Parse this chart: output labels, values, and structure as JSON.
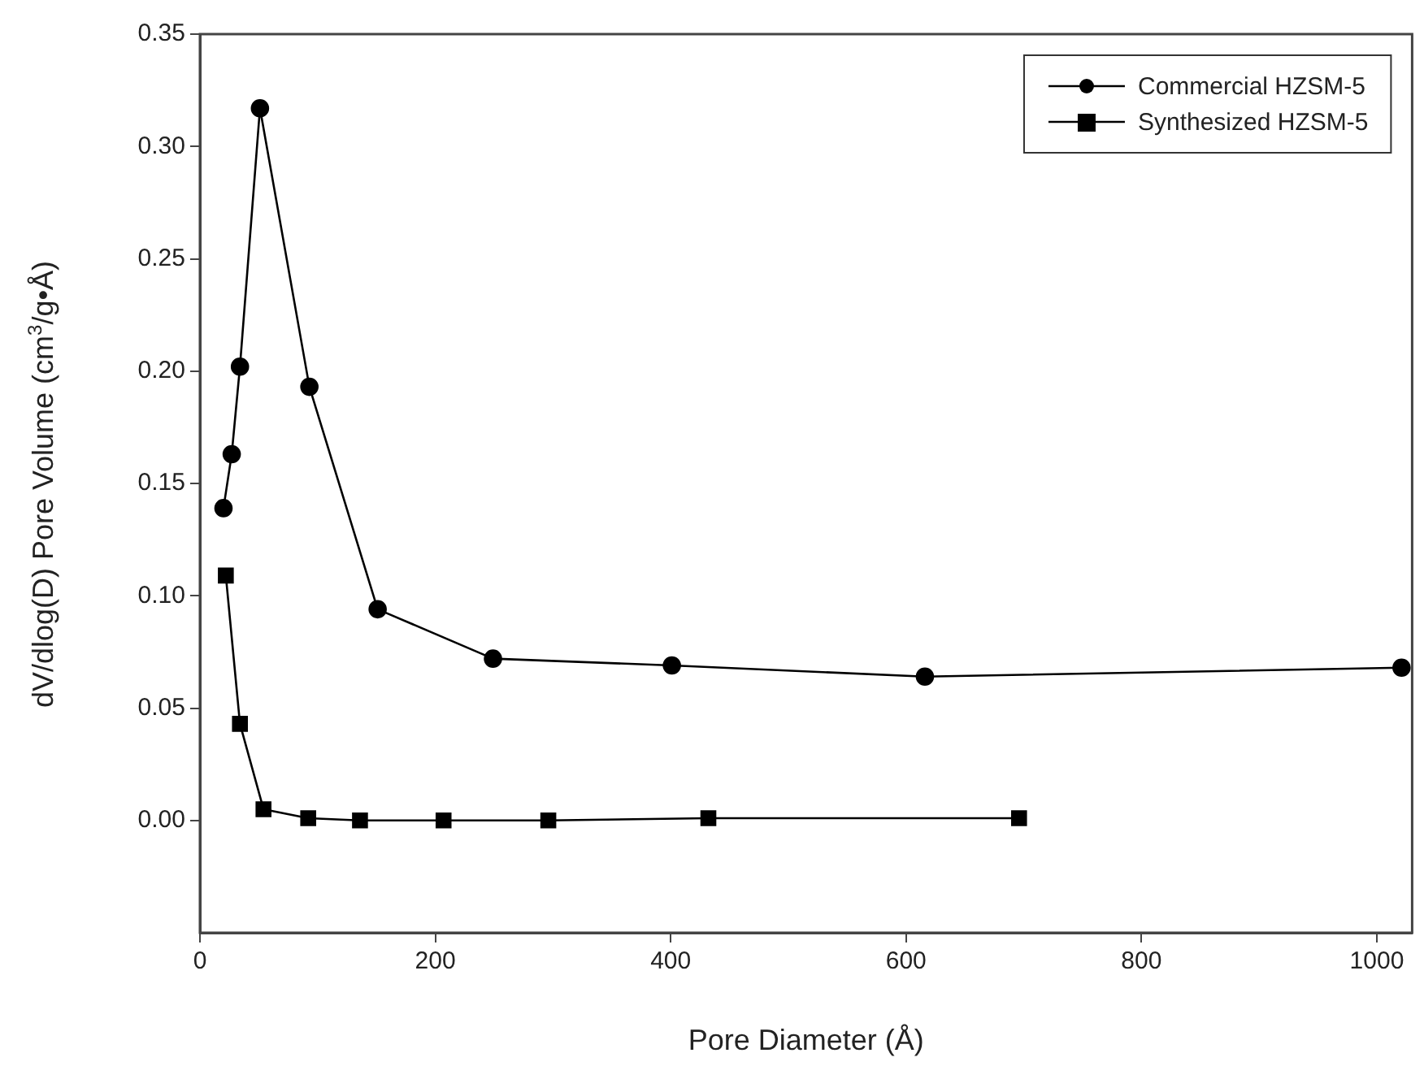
{
  "chart_data": {
    "type": "line",
    "xlabel": "Pore Diameter (Å)",
    "ylabel": "dV/dlog(D) Pore Volume (cm$^{3}$/g•Å)",
    "xlim": [
      0,
      1030
    ],
    "xticks": [
      0,
      200,
      400,
      600,
      800,
      1000
    ],
    "ylim": [
      -0.05,
      0.35
    ],
    "yticks": [
      {
        "value": 0,
        "label": "0.00"
      },
      {
        "value": 0.05,
        "label": "0.05"
      },
      {
        "value": 0.1,
        "label": "0.10"
      },
      {
        "value": 0.15,
        "label": "0.15"
      },
      {
        "value": 0.2,
        "label": "0.20"
      },
      {
        "value": 0.25,
        "label": "0.25"
      },
      {
        "value": 0.3,
        "label": "0.30"
      },
      {
        "value": 0.35,
        "label": "0.35"
      }
    ],
    "grid": false,
    "legend": "top right",
    "line_style": "solid",
    "series": [
      {
        "name": "Commercial HZSM-5",
        "color": "#000000",
        "marker": "circle",
        "x": [
          20,
          27,
          34,
          51,
          93,
          151,
          249,
          401,
          616,
          1021
        ],
        "values": [
          0.139,
          0.163,
          0.202,
          0.317,
          0.193,
          0.094,
          0.072,
          0.069,
          0.064,
          0.068
        ]
      },
      {
        "name": "Synthesized HZSM-5",
        "color": "#000000",
        "marker": "square",
        "x": [
          22,
          34,
          54,
          92,
          136,
          207,
          296,
          432,
          696
        ],
        "values": [
          0.109,
          0.043,
          0.005,
          0.001,
          0,
          0,
          0,
          0.001,
          0.001
        ]
      }
    ]
  }
}
